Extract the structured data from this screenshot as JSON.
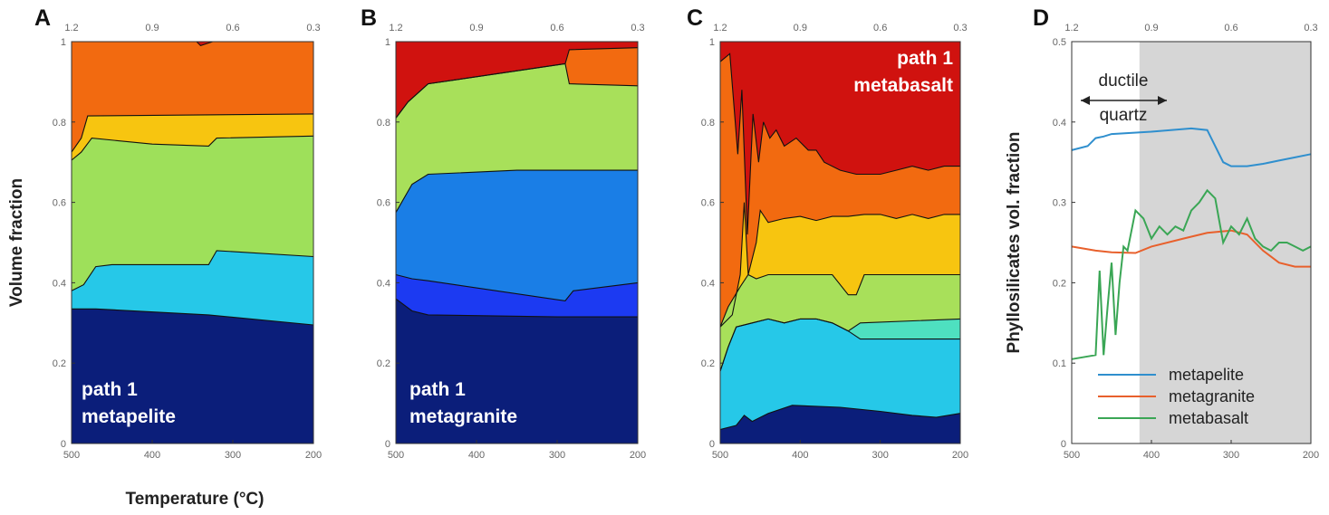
{
  "chart_data": [
    {
      "panel": "A",
      "type": "area",
      "ylabel": "Volume fraction",
      "xlabel": "Temperature (°C)",
      "xlim": [
        500,
        200
      ],
      "ylim": [
        0,
        1
      ],
      "x_ticks": [
        "500",
        "400",
        "300",
        "200"
      ],
      "y_ticks": [
        "0",
        "0.2",
        "0.4",
        "0.6",
        "0.8",
        "1"
      ],
      "top_ticks": [
        "1.2",
        "0.9",
        "0.6",
        "0.3"
      ],
      "label_lines": [
        "path 1",
        "metapelite"
      ],
      "boundaries": [
        {
          "color": "#0b1e7a",
          "pts": [
            [
              500,
              0.335
            ],
            [
              470,
              0.335
            ],
            [
              330,
              0.32
            ],
            [
              330,
              0.32
            ],
            [
              200,
              0.295
            ]
          ]
        },
        {
          "color": "#26c8e8",
          "pts": [
            [
              500,
              0.38
            ],
            [
              485,
              0.395
            ],
            [
              470,
              0.44
            ],
            [
              450,
              0.445
            ],
            [
              330,
              0.445
            ],
            [
              320,
              0.48
            ],
            [
              200,
              0.465
            ]
          ]
        },
        {
          "color": "#9ee05a",
          "pts": [
            [
              500,
              0.705
            ],
            [
              488,
              0.725
            ],
            [
              475,
              0.76
            ],
            [
              400,
              0.745
            ],
            [
              330,
              0.74
            ],
            [
              320,
              0.76
            ],
            [
              200,
              0.765
            ]
          ]
        },
        {
          "color": "#f7c510",
          "pts": [
            [
              500,
              0.725
            ],
            [
              488,
              0.76
            ],
            [
              480,
              0.815
            ],
            [
              200,
              0.82
            ]
          ]
        },
        {
          "color": "#f26a10",
          "pts": [
            [
              500,
              1
            ],
            [
              345,
              1
            ],
            [
              340,
              0.99
            ],
            [
              325,
              1
            ],
            [
              200,
              1
            ]
          ]
        },
        {
          "color": "#d0120f",
          "pts": [
            [
              500,
              1
            ],
            [
              345,
              1
            ],
            [
              330,
              1
            ],
            [
              200,
              1
            ]
          ]
        }
      ]
    },
    {
      "panel": "B",
      "type": "area",
      "xlim": [
        500,
        200
      ],
      "ylim": [
        0,
        1
      ],
      "x_ticks": [
        "500",
        "400",
        "300",
        "200"
      ],
      "y_ticks": [
        "0",
        "0.2",
        "0.4",
        "0.6",
        "0.8",
        "1"
      ],
      "top_ticks": [
        "1.2",
        "0.9",
        "0.6",
        "0.3"
      ],
      "label_lines": [
        "path 1",
        "metagranite"
      ],
      "boundaries": [
        {
          "color": "#0b1e7a",
          "pts": [
            [
              500,
              0.36
            ],
            [
              480,
              0.33
            ],
            [
              460,
              0.32
            ],
            [
              300,
              0.315
            ],
            [
              200,
              0.315
            ]
          ]
        },
        {
          "color": "#1c3af2",
          "pts": [
            [
              500,
              0.42
            ],
            [
              480,
              0.41
            ],
            [
              460,
              0.405
            ],
            [
              290,
              0.355
            ],
            [
              280,
              0.38
            ],
            [
              200,
              0.4
            ]
          ]
        },
        {
          "color": "#1a7ee6",
          "pts": [
            [
              500,
              0.575
            ],
            [
              480,
              0.645
            ],
            [
              460,
              0.67
            ],
            [
              350,
              0.68
            ],
            [
              200,
              0.68
            ]
          ]
        },
        {
          "color": "#a8e05a",
          "pts": [
            [
              500,
              0.81
            ],
            [
              485,
              0.85
            ],
            [
              460,
              0.895
            ],
            [
              290,
              0.945
            ],
            [
              285,
              0.895
            ],
            [
              200,
              0.89
            ]
          ]
        },
        {
          "color": "#f26a10",
          "pts": [
            [
              500,
              0.81
            ],
            [
              485,
              0.85
            ],
            [
              460,
              0.895
            ],
            [
              290,
              0.945
            ],
            [
              285,
              0.98
            ],
            [
              200,
              0.985
            ]
          ]
        },
        {
          "color": "#d0120f",
          "pts": [
            [
              500,
              1
            ],
            [
              200,
              1
            ]
          ]
        }
      ]
    },
    {
      "panel": "C",
      "type": "area",
      "xlim": [
        500,
        200
      ],
      "ylim": [
        0,
        1
      ],
      "x_ticks": [
        "500",
        "400",
        "300",
        "200"
      ],
      "y_ticks": [
        "0",
        "0.2",
        "0.4",
        "0.6",
        "0.8",
        "1"
      ],
      "top_ticks": [
        "1.2",
        "0.9",
        "0.6",
        "0.3"
      ],
      "label_lines": [
        "path 1",
        "metabasalt"
      ],
      "boundaries": [
        {
          "color": "#0b1e7a",
          "pts": [
            [
              500,
              0.035
            ],
            [
              480,
              0.045
            ],
            [
              470,
              0.07
            ],
            [
              460,
              0.055
            ],
            [
              440,
              0.075
            ],
            [
              410,
              0.095
            ],
            [
              350,
              0.09
            ],
            [
              300,
              0.08
            ],
            [
              260,
              0.07
            ],
            [
              230,
              0.065
            ],
            [
              200,
              0.075
            ]
          ]
        },
        {
          "color": "#26c8e8",
          "pts": [
            [
              500,
              0.18
            ],
            [
              490,
              0.24
            ],
            [
              480,
              0.29
            ],
            [
              460,
              0.3
            ],
            [
              440,
              0.31
            ],
            [
              420,
              0.3
            ],
            [
              400,
              0.31
            ],
            [
              380,
              0.31
            ],
            [
              360,
              0.3
            ],
            [
              340,
              0.28
            ],
            [
              325,
              0.26
            ],
            [
              200,
              0.26
            ]
          ]
        },
        {
          "color": "#4ee0c0",
          "pts": [
            [
              500,
              0.18
            ],
            [
              490,
              0.24
            ],
            [
              480,
              0.29
            ],
            [
              460,
              0.3
            ],
            [
              440,
              0.31
            ],
            [
              420,
              0.3
            ],
            [
              400,
              0.31
            ],
            [
              380,
              0.31
            ],
            [
              360,
              0.3
            ],
            [
              340,
              0.28
            ],
            [
              325,
              0.3
            ],
            [
              200,
              0.31
            ]
          ]
        },
        {
          "color": "#a8e05a",
          "pts": [
            [
              500,
              0.29
            ],
            [
              490,
              0.34
            ],
            [
              475,
              0.39
            ],
            [
              465,
              0.42
            ],
            [
              455,
              0.41
            ],
            [
              440,
              0.42
            ],
            [
              420,
              0.42
            ],
            [
              400,
              0.42
            ],
            [
              360,
              0.42
            ],
            [
              340,
              0.37
            ],
            [
              330,
              0.37
            ],
            [
              320,
              0.42
            ],
            [
              200,
              0.42
            ]
          ]
        },
        {
          "color": "#f7c510",
          "pts": [
            [
              500,
              0.29
            ],
            [
              485,
              0.32
            ],
            [
              475,
              0.42
            ],
            [
              470,
              0.6
            ],
            [
              465,
              0.42
            ],
            [
              455,
              0.5
            ],
            [
              450,
              0.58
            ],
            [
              440,
              0.55
            ],
            [
              420,
              0.56
            ],
            [
              400,
              0.565
            ],
            [
              380,
              0.555
            ],
            [
              360,
              0.565
            ],
            [
              340,
              0.565
            ],
            [
              320,
              0.57
            ],
            [
              300,
              0.57
            ],
            [
              280,
              0.56
            ],
            [
              260,
              0.57
            ],
            [
              240,
              0.56
            ],
            [
              220,
              0.57
            ],
            [
              200,
              0.57
            ]
          ]
        },
        {
          "color": "#f26a10",
          "pts": [
            [
              500,
              0.95
            ],
            [
              488,
              0.97
            ],
            [
              478,
              0.72
            ],
            [
              473,
              0.88
            ],
            [
              466,
              0.52
            ],
            [
              459,
              0.82
            ],
            [
              452,
              0.7
            ],
            [
              446,
              0.8
            ],
            [
              438,
              0.76
            ],
            [
              430,
              0.78
            ],
            [
              420,
              0.74
            ],
            [
              405,
              0.76
            ],
            [
              390,
              0.73
            ],
            [
              380,
              0.73
            ],
            [
              370,
              0.7
            ],
            [
              350,
              0.68
            ],
            [
              330,
              0.67
            ],
            [
              300,
              0.67
            ],
            [
              280,
              0.68
            ],
            [
              260,
              0.69
            ],
            [
              240,
              0.68
            ],
            [
              220,
              0.69
            ],
            [
              200,
              0.69
            ]
          ]
        },
        {
          "color": "#d0120f",
          "pts": [
            [
              500,
              1
            ],
            [
              200,
              1
            ]
          ]
        }
      ]
    },
    {
      "panel": "D",
      "type": "line",
      "ylabel": "Phyllosilicates vol. fraction",
      "xlim": [
        500,
        200
      ],
      "ylim": [
        0,
        0.5
      ],
      "x_ticks": [
        "500",
        "400",
        "300",
        "200"
      ],
      "y_ticks": [
        "0",
        "0.1",
        "0.2",
        "0.3",
        "0.4",
        "0.5"
      ],
      "top_ticks": [
        "1.2",
        "0.9",
        "0.6",
        "0.3"
      ],
      "annotation": [
        "ductile",
        "quartz"
      ],
      "series": [
        {
          "name": "metapelite",
          "color": "#2f8fce",
          "x": [
            500,
            480,
            470,
            460,
            450,
            400,
            350,
            330,
            320,
            310,
            300,
            280,
            260,
            240,
            220,
            200
          ],
          "y": [
            0.365,
            0.37,
            0.38,
            0.382,
            0.385,
            0.388,
            0.392,
            0.39,
            0.37,
            0.35,
            0.345,
            0.345,
            0.348,
            0.352,
            0.356,
            0.36
          ]
        },
        {
          "name": "metagranite",
          "color": "#e8602c",
          "x": [
            500,
            470,
            450,
            420,
            400,
            360,
            330,
            300,
            280,
            260,
            240,
            220,
            200
          ],
          "y": [
            0.245,
            0.24,
            0.238,
            0.237,
            0.245,
            0.255,
            0.262,
            0.265,
            0.26,
            0.24,
            0.225,
            0.22,
            0.22
          ]
        },
        {
          "name": "metabasalt",
          "color": "#3aa655",
          "x": [
            500,
            470,
            465,
            460,
            455,
            450,
            445,
            440,
            435,
            430,
            420,
            410,
            400,
            390,
            380,
            370,
            360,
            350,
            340,
            330,
            320,
            310,
            300,
            290,
            280,
            270,
            260,
            250,
            240,
            230,
            220,
            210,
            200
          ],
          "y": [
            0.105,
            0.11,
            0.215,
            0.11,
            0.17,
            0.225,
            0.135,
            0.2,
            0.245,
            0.24,
            0.29,
            0.28,
            0.255,
            0.27,
            0.26,
            0.27,
            0.265,
            0.29,
            0.3,
            0.315,
            0.305,
            0.25,
            0.27,
            0.26,
            0.28,
            0.255,
            0.245,
            0.24,
            0.25,
            0.25,
            0.245,
            0.24,
            0.245
          ]
        }
      ]
    }
  ]
}
